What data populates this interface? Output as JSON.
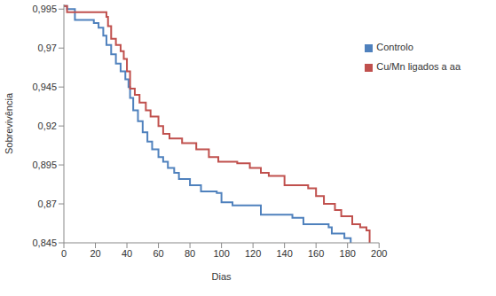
{
  "chart_data": {
    "type": "line",
    "x_label": "Dias",
    "y_label": "Sobrevivência",
    "xlim": [
      0,
      200
    ],
    "xticks": [
      0,
      20,
      40,
      60,
      80,
      100,
      120,
      140,
      160,
      180,
      200
    ],
    "ylim": [
      0.845,
      0.998
    ],
    "yticks": [
      {
        "value": 0.845,
        "label": "0,845"
      },
      {
        "value": 0.87,
        "label": "0,87"
      },
      {
        "value": 0.895,
        "label": "0,895"
      },
      {
        "value": 0.92,
        "label": "0,92"
      },
      {
        "value": 0.945,
        "label": "0,945"
      },
      {
        "value": 0.97,
        "label": "0,97"
      },
      {
        "value": 0.995,
        "label": "0,995"
      }
    ],
    "grid": false,
    "legend": "upper right",
    "series": [
      {
        "name": "Controlo",
        "color": "#4f81bd",
        "line_style": "step",
        "x": [
          0,
          2,
          7,
          19,
          22,
          25,
          27,
          30,
          33,
          36,
          39,
          41,
          42,
          44,
          47,
          50,
          53,
          56,
          60,
          63,
          66,
          70,
          73,
          80,
          87,
          97,
          100,
          107,
          125,
          145,
          152,
          168,
          170,
          178,
          182
        ],
        "values": [
          0.997,
          0.995,
          0.988,
          0.986,
          0.983,
          0.978,
          0.972,
          0.966,
          0.96,
          0.955,
          0.95,
          0.945,
          0.938,
          0.93,
          0.923,
          0.916,
          0.91,
          0.905,
          0.9,
          0.897,
          0.893,
          0.89,
          0.886,
          0.882,
          0.878,
          0.877,
          0.871,
          0.869,
          0.863,
          0.861,
          0.857,
          0.855,
          0.851,
          0.848,
          0.845
        ]
      },
      {
        "name": "Cu/Mn ligados a aa",
        "color": "#c0504d",
        "line_style": "step",
        "x": [
          0,
          2,
          27,
          28,
          30,
          33,
          36,
          38,
          40,
          42,
          45,
          48,
          52,
          55,
          60,
          63,
          67,
          75,
          84,
          92,
          98,
          110,
          118,
          125,
          130,
          140,
          155,
          160,
          165,
          172,
          176,
          183,
          188,
          192,
          194
        ],
        "values": [
          0.997,
          0.993,
          0.99,
          0.984,
          0.976,
          0.972,
          0.968,
          0.963,
          0.955,
          0.944,
          0.94,
          0.935,
          0.93,
          0.926,
          0.92,
          0.915,
          0.912,
          0.909,
          0.905,
          0.9,
          0.897,
          0.896,
          0.893,
          0.89,
          0.888,
          0.882,
          0.88,
          0.875,
          0.87,
          0.866,
          0.862,
          0.857,
          0.855,
          0.853,
          0.845
        ]
      }
    ]
  }
}
